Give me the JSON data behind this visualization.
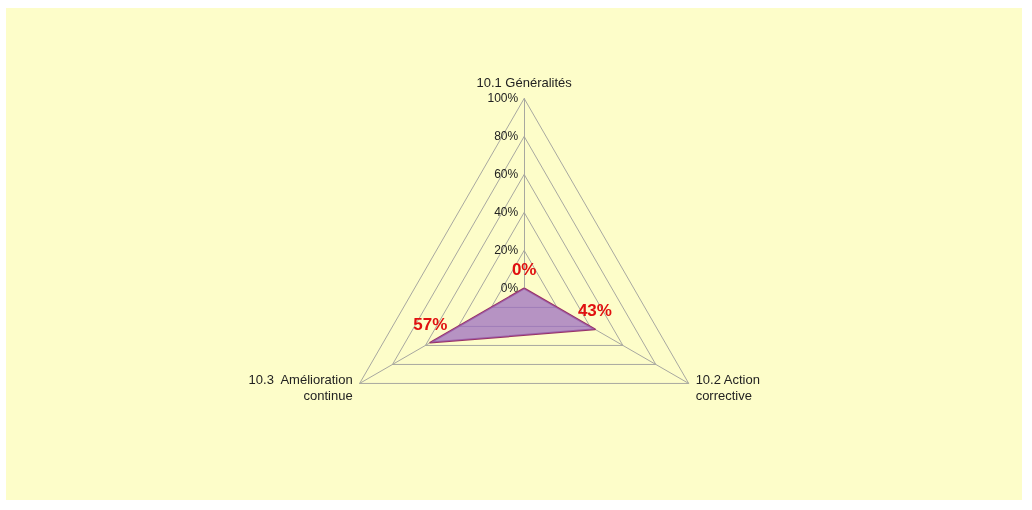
{
  "chart_data": {
    "type": "radar",
    "categories": [
      "10.1 Généralités",
      "10.2 Action\ncorrective",
      "10.3  Amélioration\ncontinue"
    ],
    "series": [
      {
        "color": "#993366",
        "values": [
          0,
          43,
          57
        ],
        "value_labels": [
          "0%",
          "43%",
          "57%"
        ]
      }
    ],
    "ylim": [
      0,
      100
    ],
    "yticks": [
      {
        "value": 0,
        "label": "0%"
      },
      {
        "value": 20,
        "label": "20%"
      },
      {
        "value": 40,
        "label": "40%"
      },
      {
        "value": 60,
        "label": "60%"
      },
      {
        "value": 80,
        "label": "80%"
      },
      {
        "value": 100,
        "label": "100%"
      }
    ],
    "grid": true
  }
}
